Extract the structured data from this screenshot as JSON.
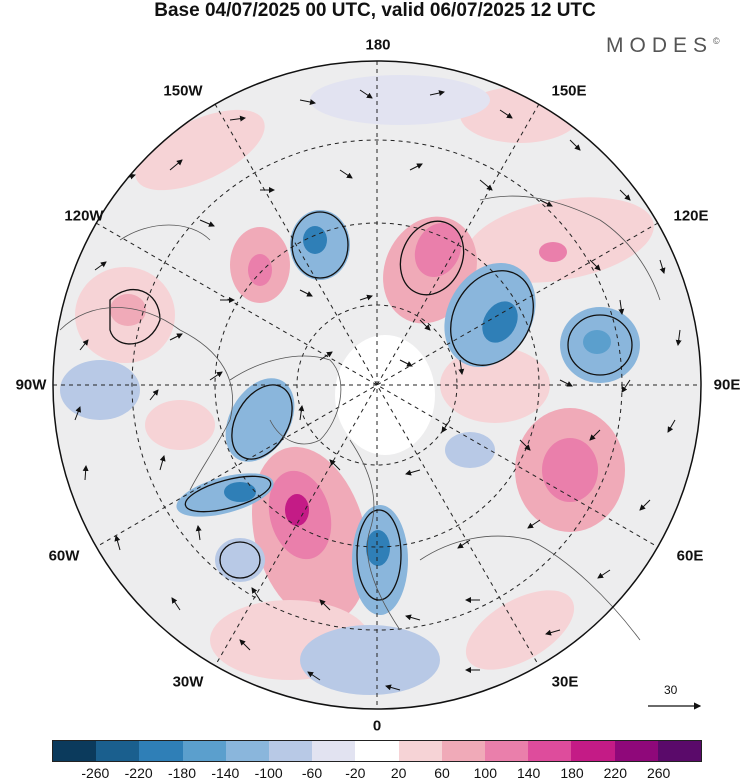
{
  "title": "Base 04/07/2025 00 UTC, valid 06/07/2025 12 UTC",
  "brand": "MODES",
  "brand_mark": "©",
  "longitude_labels": {
    "top": "180",
    "bottom": "0",
    "left": "90W",
    "right": "90E",
    "upper_left_1": "150W",
    "upper_left_2": "120W",
    "upper_right_1": "150E",
    "upper_right_2": "120E",
    "lower_left_1": "60W",
    "lower_left_2": "30W",
    "lower_right_1": "60E",
    "lower_right_2": "30E"
  },
  "vector_scale": {
    "label": "30"
  },
  "colorbar": {
    "colors": [
      "#0b3a5c",
      "#1a5f8e",
      "#2f7fb7",
      "#5b9fcd",
      "#8ab6dc",
      "#b8c9e6",
      "#e2e3f1",
      "#ffffff",
      "#f6d3d6",
      "#f0aab8",
      "#ea7fab",
      "#de4c9c",
      "#c41b86",
      "#8f087a",
      "#5a0a6a"
    ],
    "ticks": [
      "-260",
      "-220",
      "-180",
      "-140",
      "-100",
      "-60",
      "-20",
      "20",
      "60",
      "100",
      "140",
      "180",
      "220",
      "260"
    ]
  }
}
